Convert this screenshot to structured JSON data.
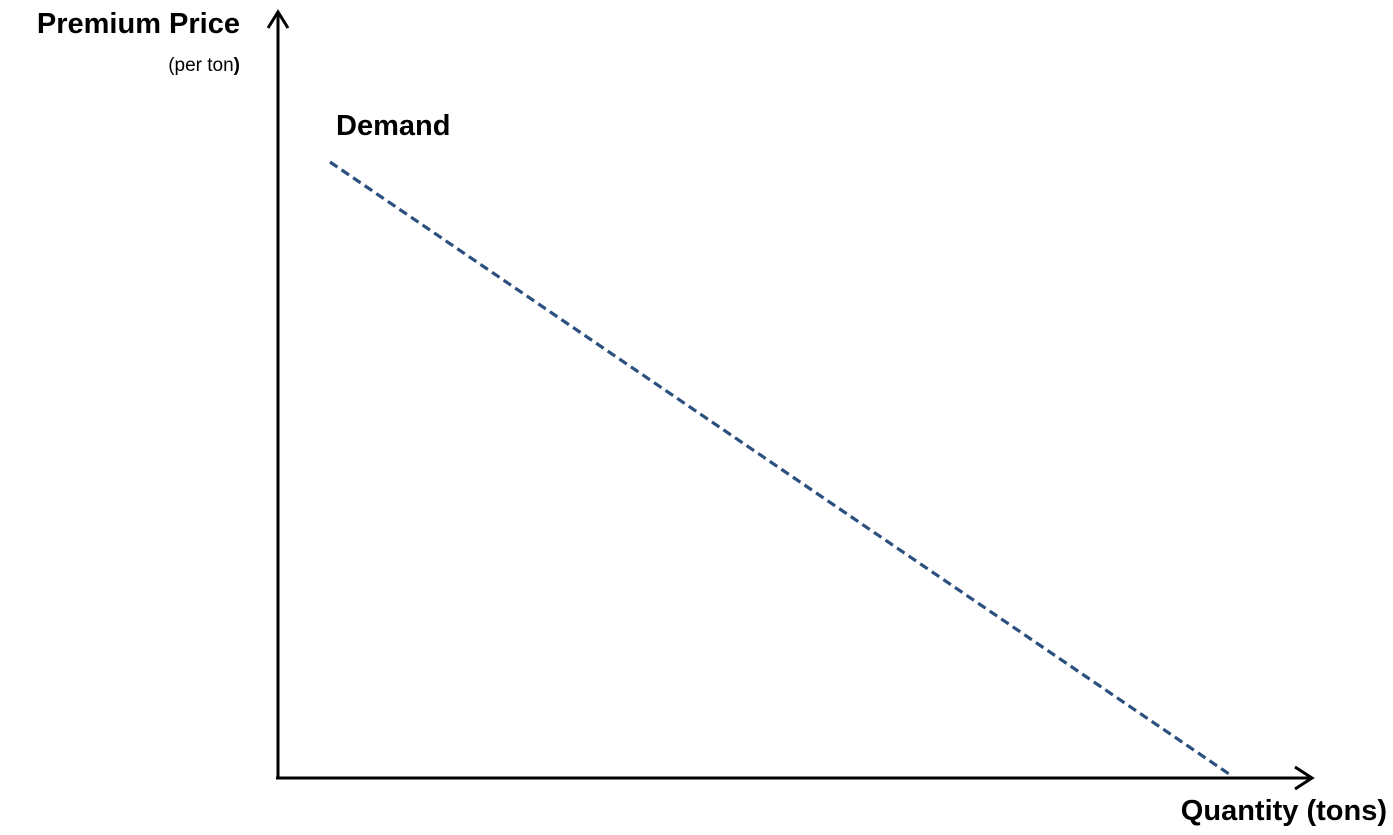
{
  "diagram": {
    "y_axis": {
      "title": "Premium Price",
      "units_prefix": "(per ton",
      "units_suffix": ")"
    },
    "x_axis": {
      "title": "Quantity (tons)"
    },
    "curves": [
      {
        "name": "Demand",
        "style": "dashed",
        "color": "#2b4f7e"
      }
    ],
    "axis_color": "#000000"
  }
}
